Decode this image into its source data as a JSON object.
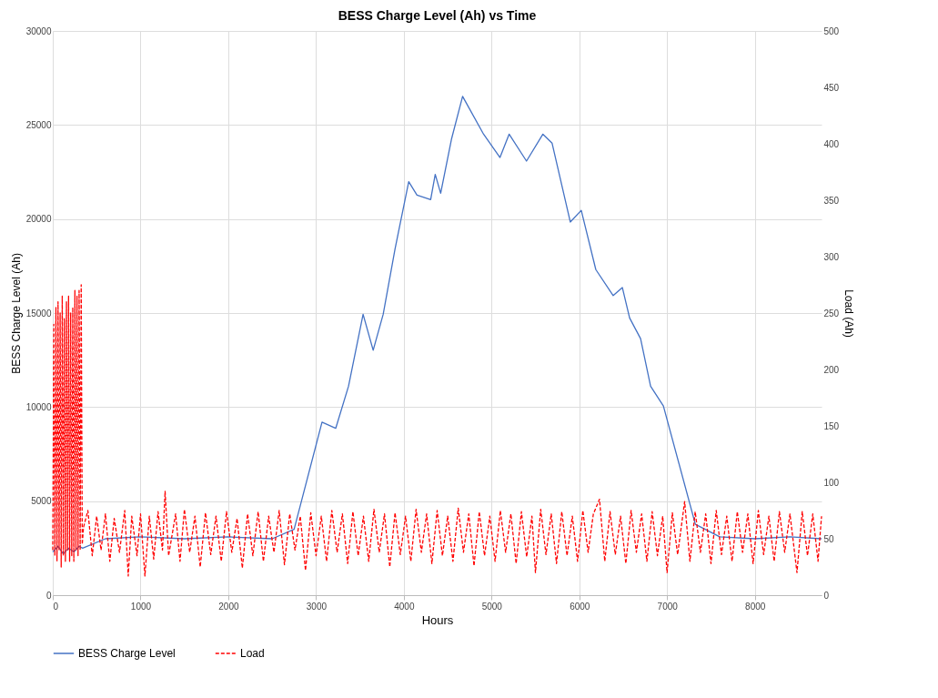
{
  "chart_data": {
    "type": "line",
    "title": "BESS Charge Level (Ah) vs Time",
    "xlabel": "Hours",
    "ylabel": "BESS Charge Level (Ah)",
    "y2label": "Load (Ah)",
    "xlim": [
      0,
      8760
    ],
    "xticks": [
      0,
      1000,
      2000,
      3000,
      4000,
      5000,
      6000,
      7000,
      8000
    ],
    "ylim": [
      0,
      30000
    ],
    "yticks": [
      0,
      5000,
      10000,
      15000,
      20000,
      25000,
      30000
    ],
    "y2lim": [
      0,
      500
    ],
    "y2ticks": [
      0,
      50,
      100,
      150,
      200,
      250,
      300,
      350,
      400,
      450,
      500
    ],
    "grid": true,
    "legend": "bottom",
    "series": [
      {
        "name": "BESS Charge Level",
        "color": "#4472c4",
        "line_style": "solid",
        "x": [
          0,
          60,
          120,
          180,
          240,
          300,
          340,
          600,
          1000,
          1500,
          2000,
          2500,
          2750,
          3068,
          3224,
          3370,
          3536,
          3651,
          3765,
          3900,
          4056,
          4150,
          4306,
          4358,
          4420,
          4545,
          4670,
          4909,
          5096,
          5200,
          5398,
          5585,
          5689,
          5897,
          6022,
          6188,
          6386,
          6490,
          6573,
          6698,
          6812,
          6958,
          7322,
          7600,
          8000,
          8400,
          8760
        ],
        "values": [
          2300,
          2600,
          2200,
          2500,
          2300,
          2600,
          2500,
          3000,
          3100,
          3000,
          3100,
          3000,
          3500,
          9200,
          8870,
          11110,
          14930,
          13020,
          14930,
          18410,
          21990,
          21270,
          21030,
          22370,
          21370,
          24280,
          26520,
          24510,
          23270,
          24510,
          23080,
          24510,
          24040,
          19840,
          20460,
          17310,
          15930,
          16360,
          14740,
          13640,
          11110,
          10060,
          3770,
          3100,
          3000,
          3100,
          3000
        ]
      },
      {
        "name": "Load",
        "color": "#ff0000",
        "line_style": "dashed",
        "axis": "y2",
        "x": [
          0,
          12,
          24,
          36,
          48,
          60,
          72,
          84,
          96,
          108,
          120,
          132,
          144,
          156,
          168,
          180,
          192,
          204,
          216,
          228,
          240,
          252,
          264,
          276,
          288,
          300,
          312,
          324,
          336,
          350,
          400,
          450,
          500,
          550,
          600,
          650,
          700,
          760,
          820,
          860,
          900,
          960,
          1000,
          1050,
          1100,
          1150,
          1200,
          1250,
          1280,
          1320,
          1400,
          1450,
          1500,
          1560,
          1620,
          1680,
          1740,
          1800,
          1860,
          1920,
          1980,
          2040,
          2100,
          2160,
          2220,
          2280,
          2340,
          2400,
          2460,
          2520,
          2580,
          2640,
          2700,
          2760,
          2820,
          2880,
          2940,
          3000,
          3060,
          3120,
          3180,
          3240,
          3300,
          3360,
          3420,
          3480,
          3540,
          3600,
          3660,
          3720,
          3780,
          3840,
          3900,
          3960,
          4020,
          4080,
          4140,
          4200,
          4260,
          4320,
          4380,
          4440,
          4500,
          4560,
          4620,
          4680,
          4740,
          4800,
          4860,
          4920,
          4980,
          5040,
          5100,
          5160,
          5220,
          5280,
          5340,
          5400,
          5460,
          5500,
          5560,
          5620,
          5680,
          5740,
          5800,
          5860,
          5920,
          5980,
          6040,
          6100,
          6160,
          6230,
          6290,
          6350,
          6410,
          6470,
          6530,
          6590,
          6650,
          6710,
          6770,
          6830,
          6890,
          6950,
          7000,
          7060,
          7120,
          7200,
          7260,
          7320,
          7380,
          7440,
          7500,
          7560,
          7620,
          7680,
          7740,
          7800,
          7860,
          7920,
          7980,
          8040,
          8100,
          8160,
          8220,
          8280,
          8340,
          8400,
          8480,
          8540,
          8600,
          8660,
          8720,
          8760
        ],
        "values": [
          40,
          240,
          35,
          255,
          30,
          260,
          40,
          250,
          25,
          265,
          35,
          245,
          30,
          260,
          40,
          265,
          30,
          250,
          35,
          255,
          30,
          270,
          40,
          265,
          35,
          270,
          40,
          275,
          45,
          60,
          75,
          35,
          70,
          40,
          72,
          30,
          68,
          38,
          75,
          17,
          70,
          35,
          72,
          17,
          70,
          32,
          74,
          40,
          92,
          35,
          72,
          30,
          76,
          38,
          70,
          25,
          73,
          36,
          70,
          30,
          74,
          38,
          68,
          24,
          72,
          35,
          74,
          30,
          70,
          38,
          75,
          27,
          72,
          40,
          70,
          22,
          73,
          35,
          70,
          30,
          75,
          38,
          72,
          28,
          74,
          35,
          70,
          30,
          76,
          38,
          72,
          25,
          73,
          36,
          70,
          30,
          76,
          38,
          72,
          28,
          75,
          35,
          70,
          30,
          77,
          38,
          72,
          26,
          74,
          35,
          70,
          30,
          75,
          38,
          72,
          28,
          74,
          34,
          70,
          20,
          76,
          36,
          72,
          28,
          74,
          35,
          70,
          30,
          75,
          38,
          72,
          85,
          30,
          74,
          36,
          70,
          28,
          75,
          38,
          72,
          30,
          74,
          35,
          70,
          20,
          73,
          36,
          83,
          30,
          74,
          38,
          72,
          28,
          75,
          36,
          70,
          30,
          74,
          38,
          72,
          28,
          75,
          36,
          70,
          30,
          74,
          38,
          72,
          20,
          74,
          35,
          72,
          30,
          70
        ]
      }
    ]
  }
}
